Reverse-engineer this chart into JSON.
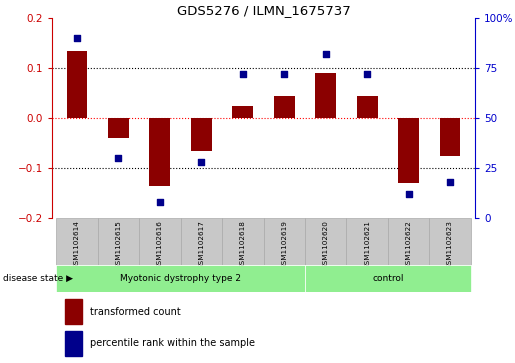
{
  "title": "GDS5276 / ILMN_1675737",
  "samples": [
    "GSM1102614",
    "GSM1102615",
    "GSM1102616",
    "GSM1102617",
    "GSM1102618",
    "GSM1102619",
    "GSM1102620",
    "GSM1102621",
    "GSM1102622",
    "GSM1102623"
  ],
  "red_values": [
    0.135,
    -0.04,
    -0.135,
    -0.065,
    0.025,
    0.045,
    0.09,
    0.045,
    -0.13,
    -0.075
  ],
  "blue_values": [
    90,
    30,
    8,
    28,
    72,
    72,
    82,
    72,
    12,
    18
  ],
  "ylim_left": [
    -0.2,
    0.2
  ],
  "ylim_right": [
    0,
    100
  ],
  "yticks_left": [
    -0.2,
    -0.1,
    0.0,
    0.1,
    0.2
  ],
  "yticks_right": [
    0,
    25,
    50,
    75,
    100
  ],
  "hlines_black": [
    0.1,
    -0.1
  ],
  "hline_red": 0.0,
  "groups": [
    {
      "label": "Myotonic dystrophy type 2",
      "start": 0,
      "end": 6,
      "color": "#90EE90"
    },
    {
      "label": "control",
      "start": 6,
      "end": 10,
      "color": "#90EE90"
    }
  ],
  "disease_state_label": "disease state",
  "bar_color": "#8B0000",
  "dot_color": "#00008B",
  "legend_red": "transformed count",
  "legend_blue": "percentile rank within the sample",
  "bar_width": 0.5,
  "label_color_left": "#CC0000",
  "label_color_right": "#0000CC",
  "box_color": "#C8C8C8",
  "box_edge_color": "#AAAAAA"
}
